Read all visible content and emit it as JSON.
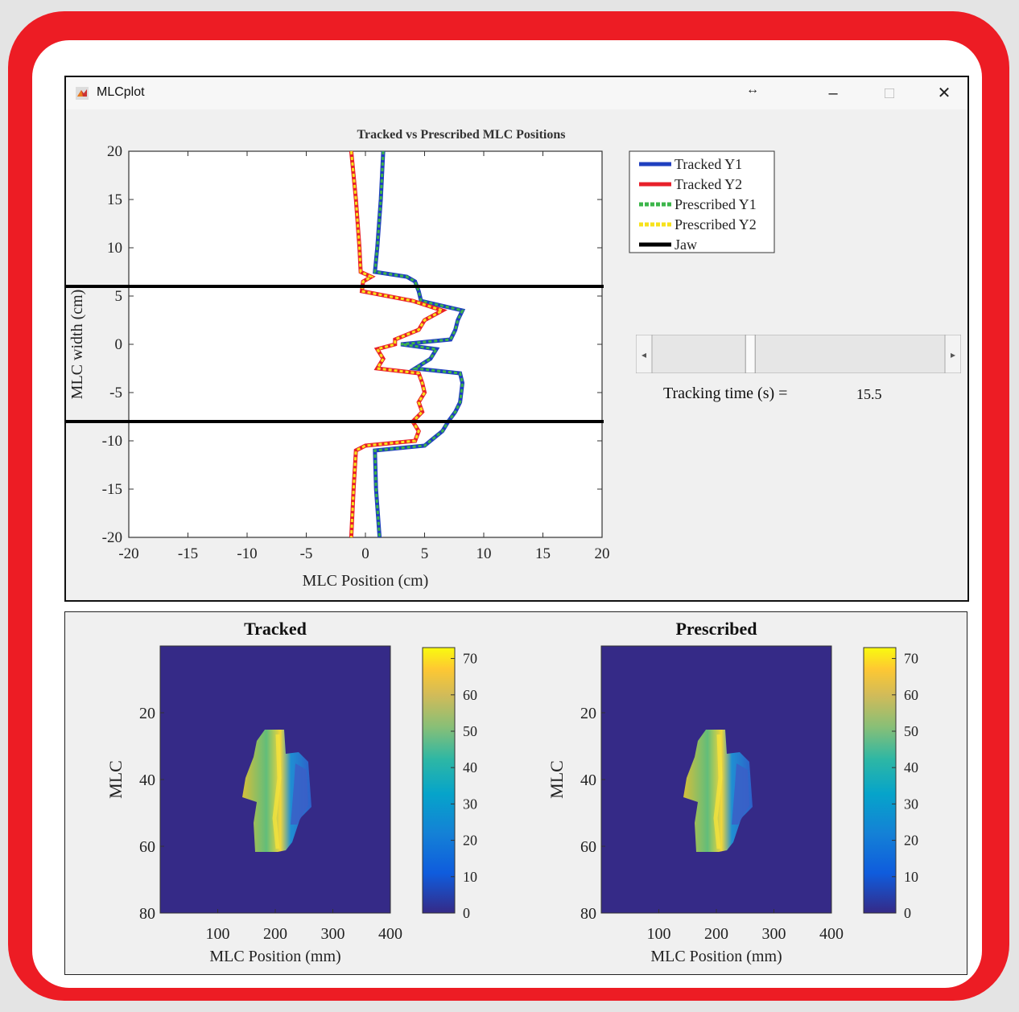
{
  "window": {
    "title": "MLCplot",
    "resize_glyph": "↔",
    "minimize_glyph": "–",
    "maximize_glyph": "□",
    "close_glyph": "✕"
  },
  "tracking": {
    "label": "Tracking time (s) =",
    "value": "15.5",
    "slider_fraction": 0.33
  },
  "colors": {
    "frame": "#ed1c24",
    "tracked_y1": "#1f3fbf",
    "tracked_y2": "#e8202a",
    "prescribed_y1": "#3cb54a",
    "prescribed_y2": "#f7e21b",
    "jaw": "#000000"
  },
  "chart_data": [
    {
      "type": "line",
      "title": "Tracked vs Prescribed MLC Positions",
      "xlabel": "MLC Position (cm)",
      "ylabel": "MLC width (cm)",
      "xlim": [
        -20,
        20
      ],
      "ylim": [
        -20,
        20
      ],
      "xticks": [
        "-20",
        "-15",
        "-10",
        "-5",
        "0",
        "5",
        "10",
        "15",
        "20"
      ],
      "yticks": [
        "20",
        "15",
        "10",
        "5",
        "0",
        "-5",
        "-10",
        "-15",
        "-20"
      ],
      "legend_position": "outside-right",
      "legend": [
        "Tracked Y1",
        "Tracked Y2",
        "Prescribed Y1",
        "Prescribed Y2",
        "Jaw"
      ],
      "jaw_lines": [
        6,
        -8
      ],
      "y_points": [
        20,
        15,
        10,
        7.5,
        7,
        6.5,
        5.5,
        4.5,
        3.5,
        2.5,
        1.5,
        0.5,
        0,
        -0.5,
        -1.5,
        -2.5,
        -3,
        -4,
        -5,
        -6,
        -7,
        -8,
        -9,
        -10,
        -10.5,
        -11,
        -15,
        -20
      ],
      "series": [
        {
          "name": "Tracked Y1",
          "y1": true,
          "x": [
            1.5,
            1.3,
            1.0,
            0.8,
            3.5,
            4.2,
            4.5,
            4.7,
            8.2,
            7.8,
            7.6,
            7.2,
            3.0,
            6.0,
            5.5,
            4.2,
            8.0,
            8.2,
            8.1,
            8.0,
            7.6,
            7.0,
            6.5,
            5.5,
            5.0,
            0.8,
            0.9,
            1.2
          ]
        },
        {
          "name": "Tracked Y2",
          "y1": false,
          "x": [
            -1.2,
            -0.8,
            -0.5,
            -0.4,
            0.5,
            -0.2,
            -0.3,
            4.0,
            6.5,
            5.0,
            4.5,
            2.5,
            2.5,
            1.0,
            1.5,
            1.0,
            4.5,
            4.8,
            5.0,
            4.5,
            4.8,
            4.0,
            4.5,
            4.2,
            0.0,
            -0.8,
            -1.0,
            -1.2
          ]
        }
      ]
    },
    {
      "type": "heatmap",
      "title": "Tracked",
      "xlabel": "MLC Position (mm)",
      "ylabel": "MLC",
      "xticks": [
        100,
        200,
        300,
        400
      ],
      "yticks": [
        20,
        40,
        60,
        80
      ],
      "colorbar_ticks": [
        0,
        10,
        20,
        30,
        40,
        50,
        60,
        70
      ],
      "clim": [
        0,
        73
      ]
    },
    {
      "type": "heatmap",
      "title": "Prescribed",
      "xlabel": "MLC Position (mm)",
      "ylabel": "MLC",
      "xticks": [
        100,
        200,
        300,
        400
      ],
      "yticks": [
        20,
        40,
        60,
        80
      ],
      "colorbar_ticks": [
        0,
        10,
        20,
        30,
        40,
        50,
        60,
        70
      ],
      "clim": [
        0,
        73
      ]
    }
  ]
}
